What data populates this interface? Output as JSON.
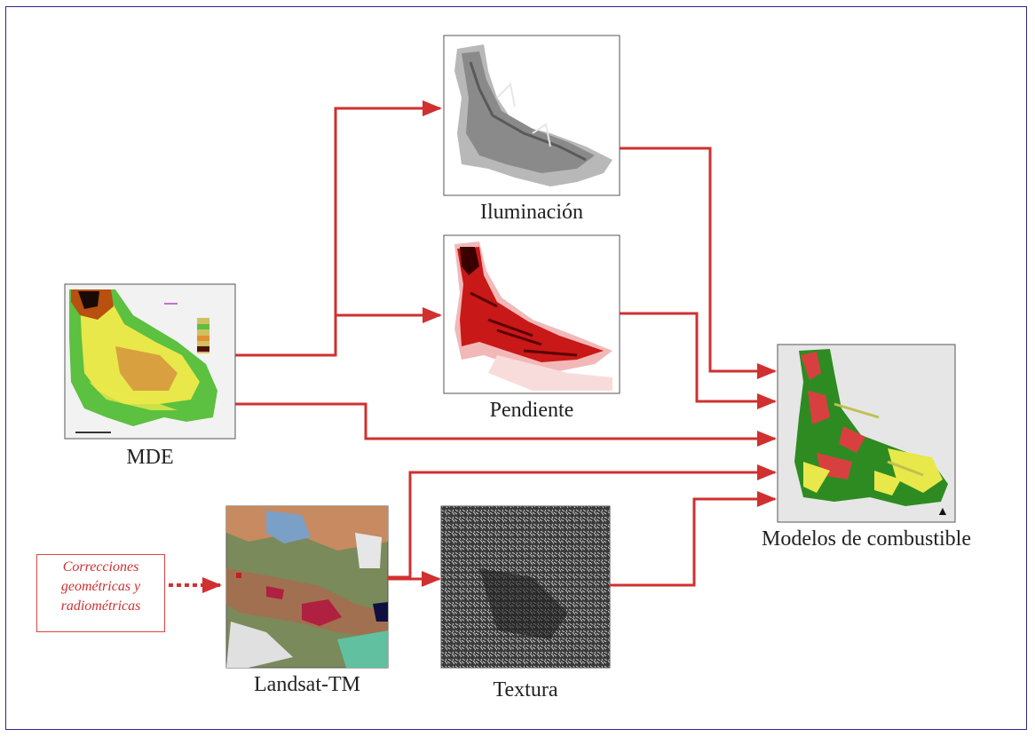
{
  "colors": {
    "frame": "#2a2a8a",
    "arrow": "#d03030",
    "terrain_green": "#5cc040",
    "terrain_yellow": "#e8e84a",
    "slope_red": "#c81818",
    "fuel_green": "#2e8b22",
    "fuel_red": "#d84040"
  },
  "nodes": {
    "mde": {
      "label": "MDE",
      "icon": "elevation-map-thumbnail"
    },
    "iluminacion": {
      "label": "Iluminación",
      "icon": "hillshade-map-thumbnail"
    },
    "pendiente": {
      "label": "Pendiente",
      "icon": "slope-map-thumbnail"
    },
    "landsat": {
      "label": "Landsat-TM",
      "icon": "satellite-image-thumbnail"
    },
    "textura": {
      "label": "Textura",
      "icon": "texture-image-thumbnail"
    },
    "modelos": {
      "label": "Modelos de combustible",
      "icon": "fuel-model-map-thumbnail"
    }
  },
  "correcciones": {
    "lines": [
      "Correcciones",
      "geométricas y",
      "radiométricas"
    ]
  },
  "edges": [
    {
      "from": "MDE",
      "to": "Iluminación"
    },
    {
      "from": "MDE",
      "to": "Pendiente"
    },
    {
      "from": "MDE",
      "to": "Modelos de combustible"
    },
    {
      "from": "Iluminación",
      "to": "Modelos de combustible"
    },
    {
      "from": "Pendiente",
      "to": "Modelos de combustible"
    },
    {
      "from": "Landsat-TM",
      "to": "Modelos de combustible"
    },
    {
      "from": "Landsat-TM",
      "to": "Textura"
    },
    {
      "from": "Textura",
      "to": "Modelos de combustible"
    },
    {
      "from": "Correcciones geométricas y radiométricas",
      "to": "Landsat-TM",
      "style": "dotted"
    }
  ]
}
